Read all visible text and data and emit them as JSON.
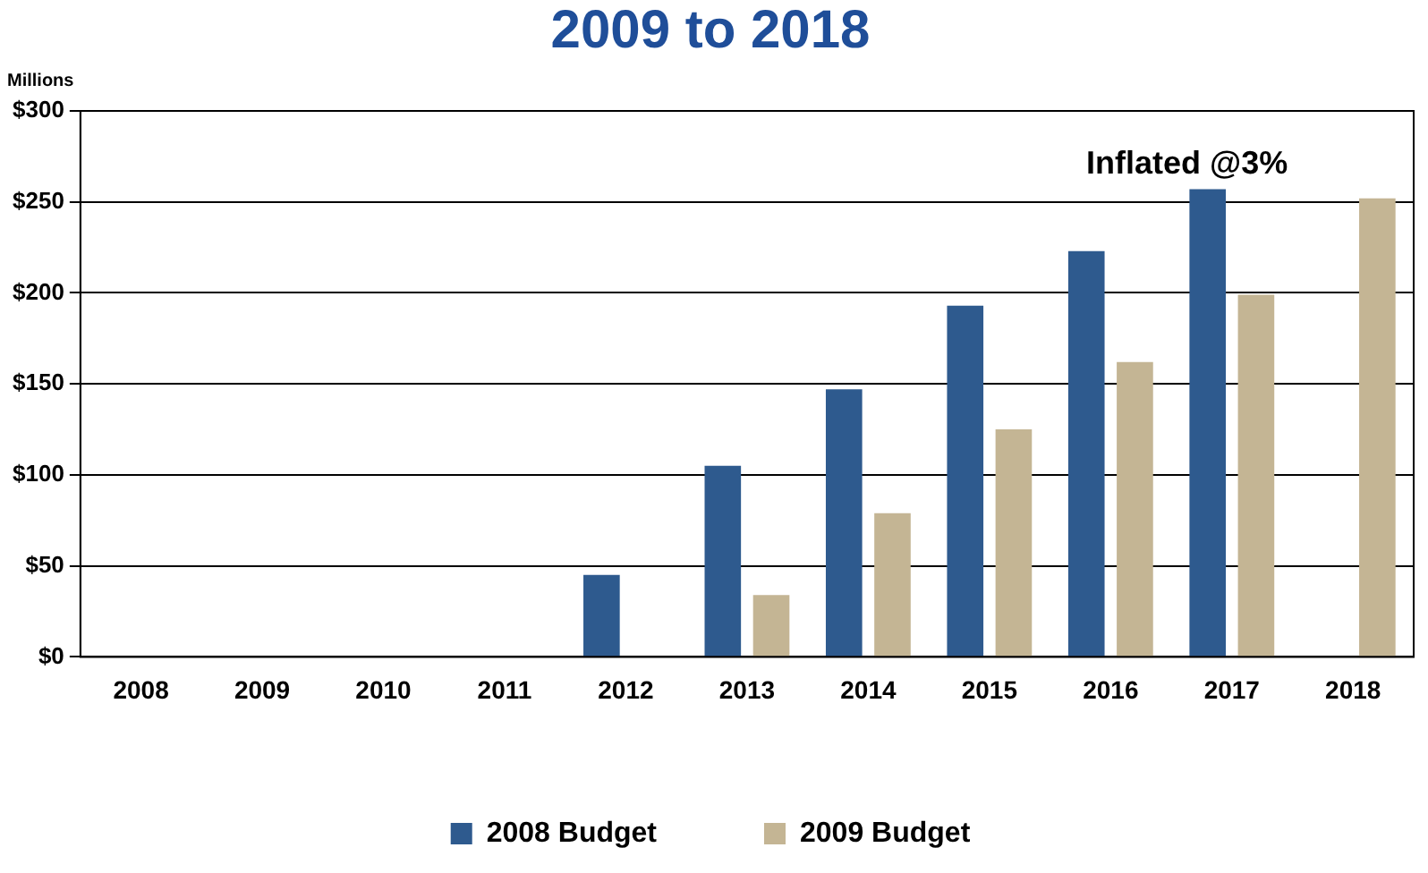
{
  "chart_data": {
    "type": "bar",
    "title": "2009 to 2018",
    "ylabel": "Millions",
    "categories": [
      "2008",
      "2009",
      "2010",
      "2011",
      "2012",
      "2013",
      "2014",
      "2015",
      "2016",
      "2017",
      "2018"
    ],
    "series": [
      {
        "name": "2008 Budget",
        "color": "#2e5a8e",
        "values": [
          0,
          0,
          0,
          0,
          45,
          105,
          147,
          193,
          223,
          257,
          0
        ]
      },
      {
        "name": "2009 Budget",
        "color": "#c4b594",
        "values": [
          0,
          0,
          0,
          0,
          0,
          34,
          79,
          125,
          162,
          199,
          252
        ]
      }
    ],
    "ylim": [
      0,
      300
    ],
    "yticks": [
      {
        "value": 0,
        "label": "$0"
      },
      {
        "value": 50,
        "label": "$50"
      },
      {
        "value": 100,
        "label": "$100"
      },
      {
        "value": 150,
        "label": "$150"
      },
      {
        "value": 200,
        "label": "$200"
      },
      {
        "value": 250,
        "label": "$250"
      },
      {
        "value": 300,
        "label": "$300"
      }
    ],
    "grid": "y",
    "legend": "bottom",
    "annotations": [
      "Inflated @3%"
    ]
  }
}
